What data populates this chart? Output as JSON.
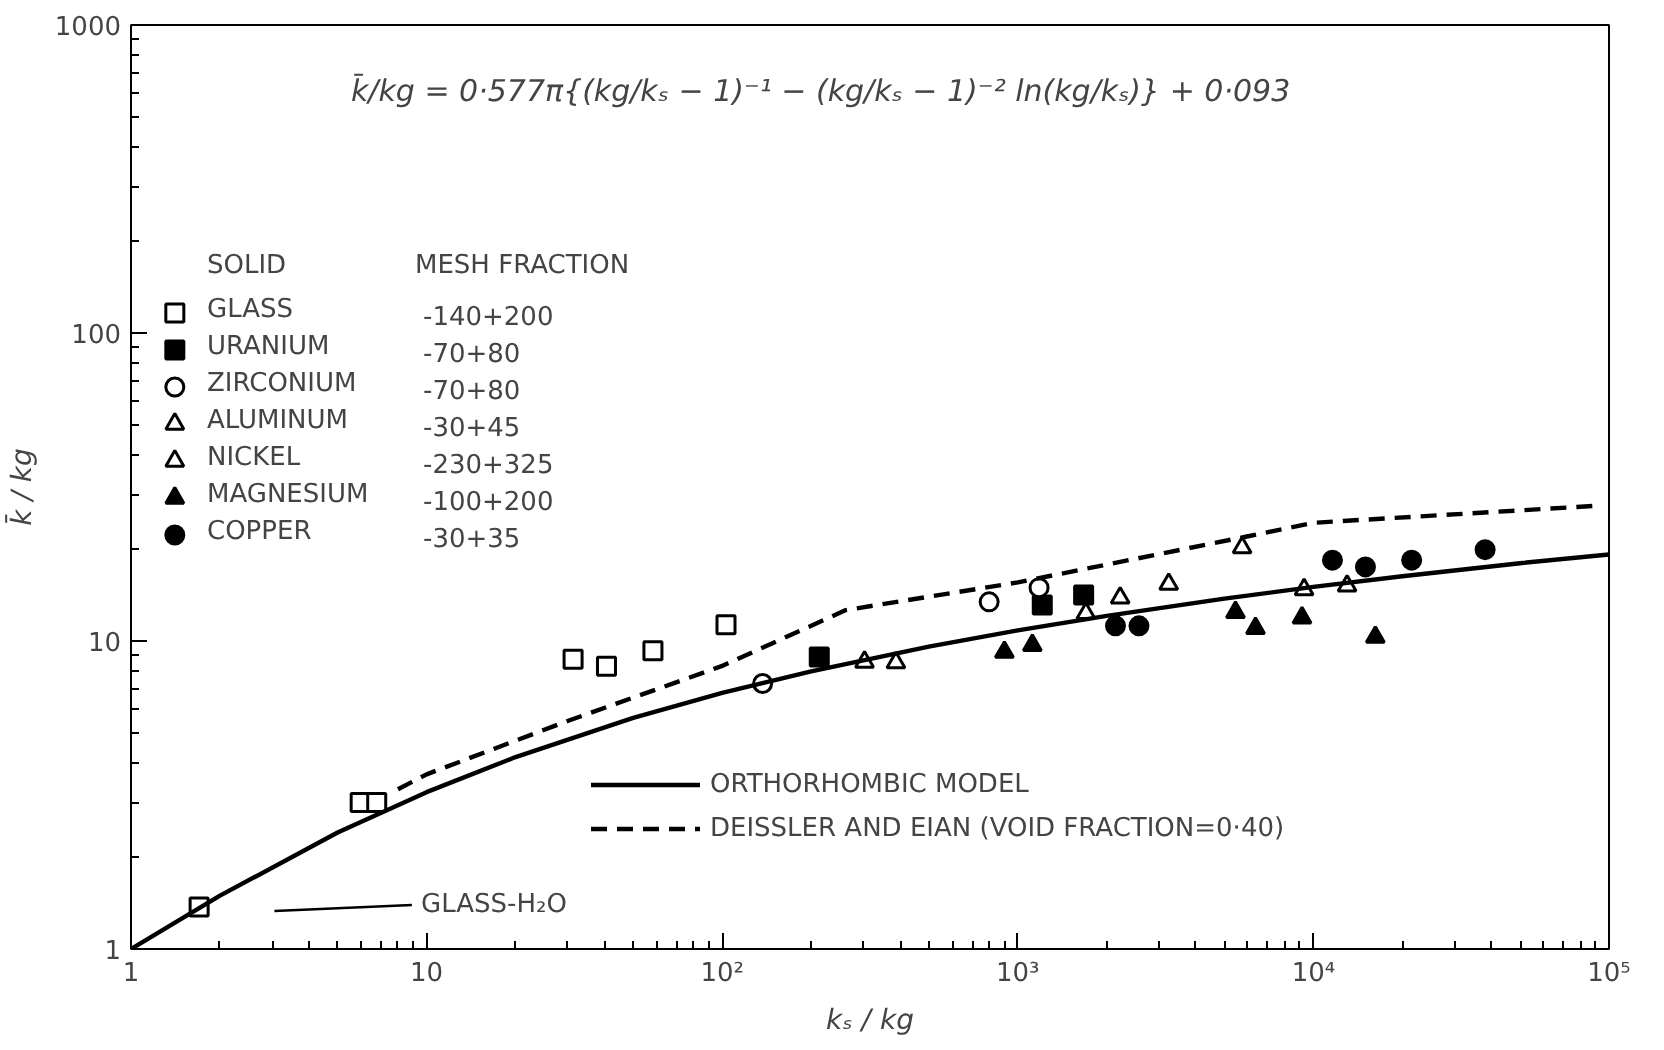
{
  "chart_data": {
    "type": "scatter",
    "xlabel": "kₛ / kg",
    "ylabel": "k̄ / kg",
    "log": "xy",
    "grid": false,
    "legend": "left",
    "legend_title": "SOLID",
    "xlim": [
      1,
      100000
    ],
    "ylim": [
      1,
      1000
    ],
    "xticks": [
      1,
      10,
      {
        "value": 100,
        "label": "10²"
      },
      {
        "value": 1000,
        "label": "10³"
      },
      {
        "value": 10000,
        "label": "10⁴"
      },
      {
        "value": 100000,
        "label": "10⁵"
      }
    ],
    "yticks": [
      1,
      10,
      100,
      1000
    ],
    "annotations": [
      "k̄/kg = 0·577π{(kg/kₛ − 1)⁻¹ − (kg/kₛ − 1)⁻² ln(kg/kₛ)} + 0·093",
      "MESH FRACTION",
      "-140+200",
      "-70+80",
      "-70+80",
      "-30+45",
      "-230+325",
      "-100+200",
      "-30+35",
      "GLASS-H₂O"
    ],
    "series": [
      {
        "name": "GLASS",
        "color": "#ffffff",
        "marker": "square",
        "x": [
          1.7,
          5.96,
          6.78,
          31.3,
          40.6,
          58.3,
          103
        ],
        "values": [
          1.37,
          2.99,
          2.99,
          8.73,
          8.28,
          9.29,
          11.3
        ]
      },
      {
        "name": "URANIUM",
        "color": "#000000",
        "marker": "square",
        "x": [
          213,
          1210,
          1670
        ],
        "values": [
          8.87,
          13.1,
          14.1
        ]
      },
      {
        "name": "ZIRCONIUM",
        "color": "#ffffff",
        "marker": "circle",
        "x": [
          137,
          800,
          1180
        ],
        "values": [
          7.28,
          13.4,
          14.9
        ]
      },
      {
        "name": "ALUMINUM",
        "color": "#ffffff",
        "marker": "triangle",
        "x": [
          9300,
          13000
        ],
        "values": [
          14.7,
          15.1
        ]
      },
      {
        "name": "NICKEL",
        "color": "#ffffff",
        "marker": "triangle",
        "x": [
          303,
          387,
          1700,
          2220,
          3240,
          5740
        ],
        "values": [
          8.55,
          8.51,
          12.3,
          13.8,
          15.3,
          20.1
        ]
      },
      {
        "name": "MAGNESIUM",
        "color": "#000000",
        "marker": "triangle",
        "x": [
          901,
          1120,
          5450,
          6370,
          9150,
          16200
        ],
        "values": [
          9.2,
          9.69,
          12.4,
          11.0,
          11.9,
          10.3
        ]
      },
      {
        "name": "COPPER",
        "color": "#000000",
        "marker": "circle",
        "x": [
          2140,
          2570,
          11600,
          15000,
          21500,
          38100
        ],
        "values": [
          11.2,
          11.2,
          18.3,
          17.4,
          18.3,
          19.8
        ]
      },
      {
        "name": "ORTHORHOMBIC MODEL",
        "type": "line",
        "line_style": "solid",
        "color": "#000000",
        "x": [
          1,
          2,
          5,
          10,
          20,
          50,
          100,
          200,
          500,
          1000,
          2000,
          5000,
          10000,
          20000,
          50000,
          100000
        ],
        "values": [
          1.0,
          1.49,
          2.39,
          3.23,
          4.2,
          5.63,
          6.78,
          7.97,
          9.59,
          10.83,
          12.07,
          13.73,
          14.98,
          16.23,
          17.89,
          19.1
        ]
      },
      {
        "name": "DEISSLER AND EIAN (VOID FRACTION=0·40)",
        "type": "line",
        "line_style": "dashed",
        "color": "#000000",
        "x": [
          8,
          10,
          30,
          100,
          262,
          1000,
          5900,
          10000,
          92000
        ],
        "values": [
          3.3,
          3.69,
          5.5,
          8.3,
          12.6,
          15.5,
          21.8,
          24.2,
          27.5
        ]
      }
    ]
  }
}
